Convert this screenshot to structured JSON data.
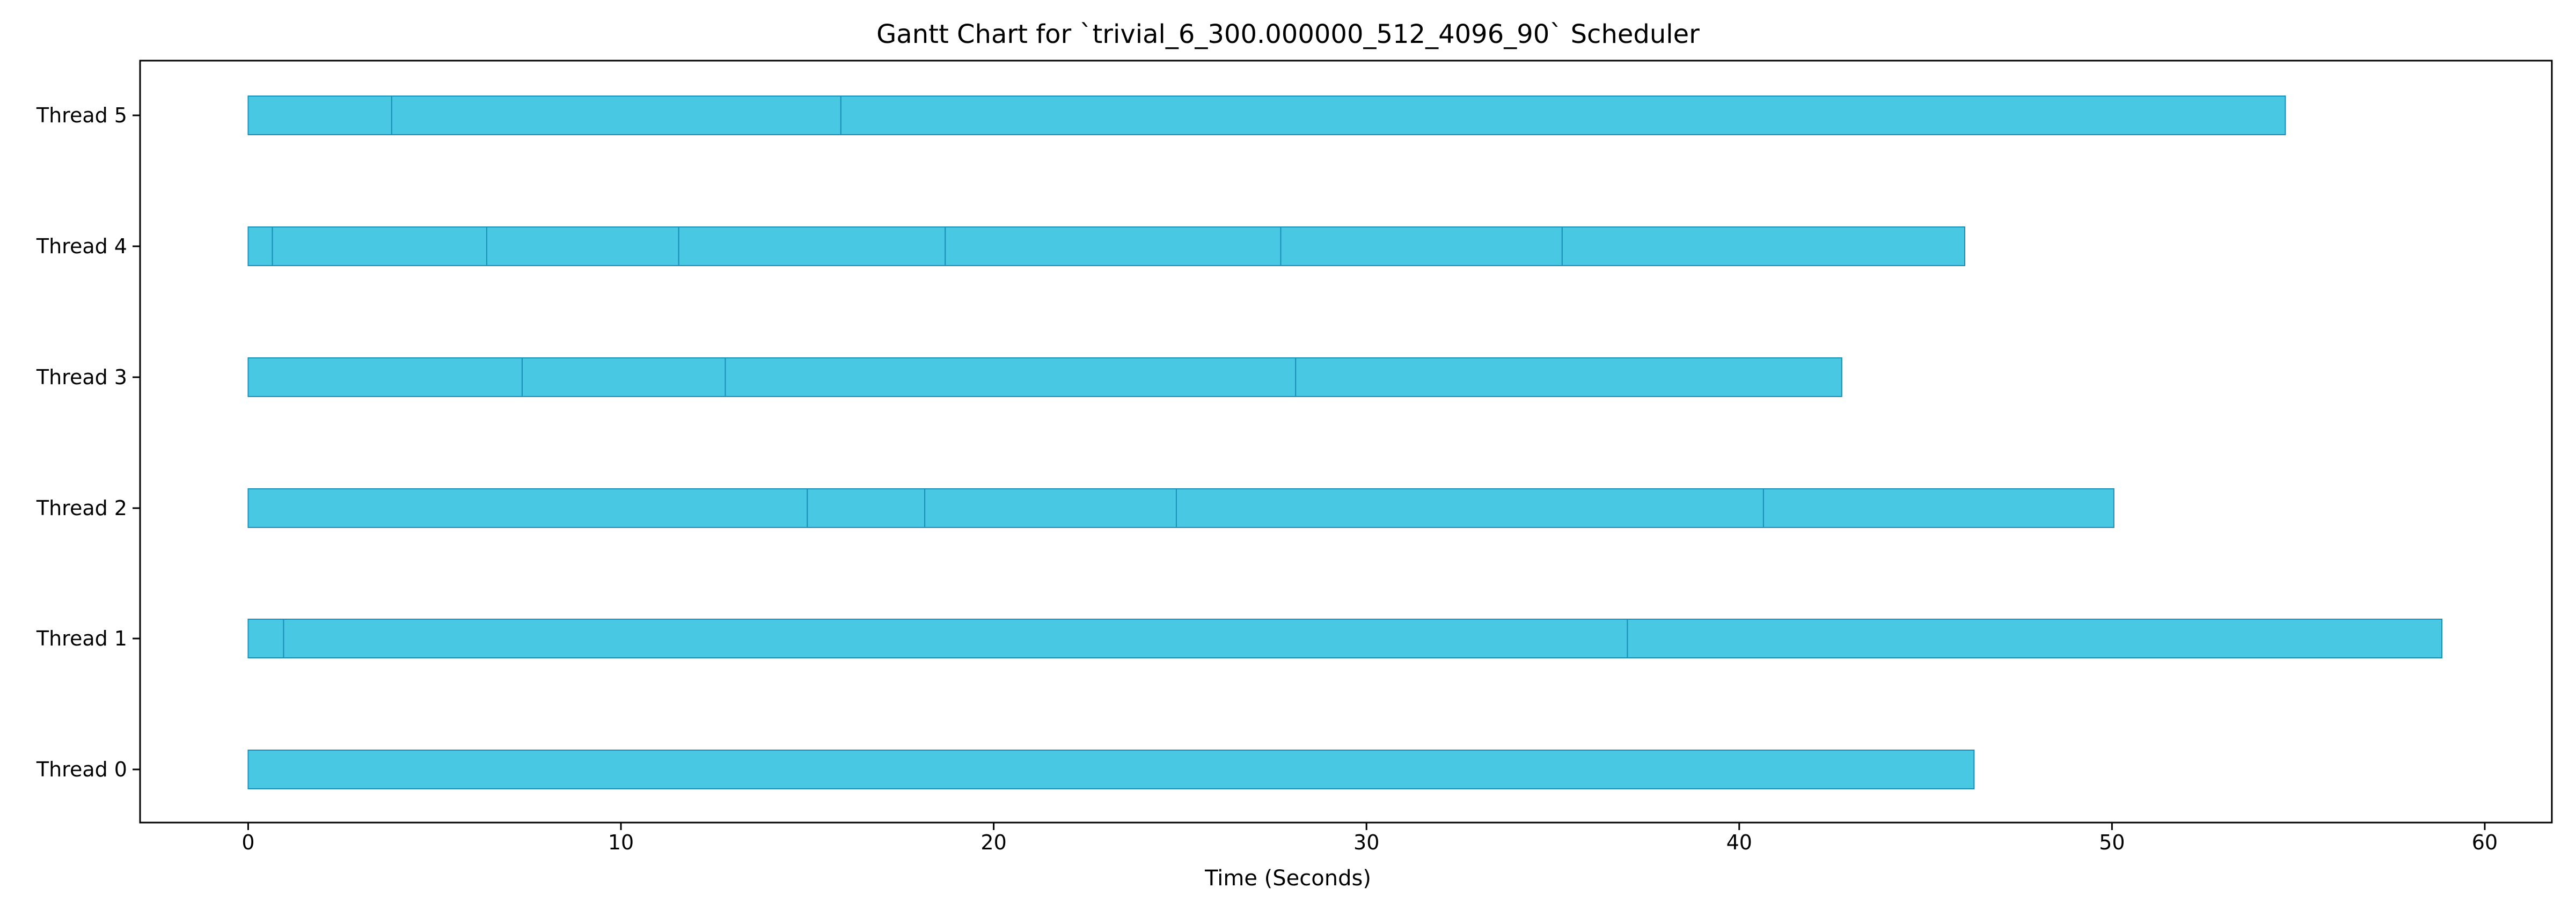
{
  "chart_data": {
    "type": "gantt",
    "title": "Gantt Chart for `trivial_6_300.000000_512_4096_90` Scheduler",
    "xlabel": "Time (Seconds)",
    "ylabel": "",
    "xlim": [
      -2.9,
      61.8
    ],
    "x_ticks": [
      0,
      10,
      20,
      30,
      40,
      50,
      60
    ],
    "grid": false,
    "bar_color": "#48c8e2",
    "segment_edge_color": "#1a8fb8",
    "threads": [
      {
        "label": "Thread 5",
        "boundaries": [
          0,
          3.85,
          15.9,
          54.65
        ]
      },
      {
        "label": "Thread 4",
        "boundaries": [
          0,
          0.65,
          6.4,
          11.55,
          18.7,
          27.7,
          35.25,
          46.05
        ]
      },
      {
        "label": "Thread 3",
        "boundaries": [
          0,
          7.35,
          12.8,
          28.1,
          42.75
        ]
      },
      {
        "label": "Thread 2",
        "boundaries": [
          0,
          15.0,
          18.15,
          24.9,
          40.65,
          50.05
        ]
      },
      {
        "label": "Thread 1",
        "boundaries": [
          0,
          0.95,
          37.0,
          58.85
        ]
      },
      {
        "label": "Thread 0",
        "boundaries": [
          0,
          46.3
        ]
      }
    ]
  }
}
